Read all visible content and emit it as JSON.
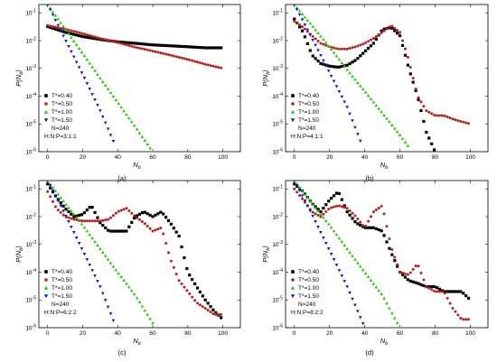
{
  "chart_data": [
    {
      "type": "scatter",
      "panel_label": "(a)",
      "xlabel": "N",
      "xlabel_sub": "b",
      "ylabel": "P(N",
      "ylabel_sub": "b",
      "ylabel_close": ")",
      "xlim": [
        -5,
        110
      ],
      "ylim_log10": [
        -6,
        -0.7
      ],
      "x_ticks": [
        0,
        20,
        40,
        60,
        80,
        100
      ],
      "y_tick_labels": [
        {
          "base": "10",
          "exp": "-1"
        },
        {
          "base": "10",
          "exp": "-2"
        },
        {
          "base": "10",
          "exp": "-3"
        },
        {
          "base": "10",
          "exp": "-4"
        },
        {
          "base": "10",
          "exp": "-5"
        },
        {
          "base": "10",
          "exp": "-6"
        }
      ],
      "legend": {
        "placement": "lower-left",
        "notes": [
          "N=240",
          "H:N:P=3:1:1"
        ]
      },
      "series": [
        {
          "name": "T*=0.40",
          "marker": "square",
          "color": "#000000",
          "x": [
            0,
            10,
            20,
            30,
            40,
            50,
            60,
            70,
            80,
            90,
            100
          ],
          "y": [
            0.032,
            0.02,
            0.014,
            0.011,
            0.009,
            0.008,
            0.007,
            0.0065,
            0.006,
            0.0055,
            0.0055
          ]
        },
        {
          "name": "T*=0.50",
          "marker": "circle",
          "color": "#b22222",
          "x": [
            0,
            10,
            20,
            30,
            40,
            50,
            60,
            70,
            80,
            90,
            100
          ],
          "y": [
            0.035,
            0.026,
            0.018,
            0.012,
            0.0085,
            0.0058,
            0.0042,
            0.003,
            0.0021,
            0.0014,
            0.001
          ]
        },
        {
          "name": "T*=1.00",
          "marker": "triangle-up",
          "color": "#22cc00",
          "x": [
            0,
            10,
            20,
            30,
            40,
            50,
            60
          ],
          "y": [
            0.2,
            0.027,
            0.0035,
            0.00045,
            6e-05,
            8e-06,
            1e-06
          ]
        },
        {
          "name": "T*=1.50",
          "marker": "triangle-down",
          "color": "#1010cc",
          "x": [
            0,
            10,
            20,
            30,
            38
          ],
          "y": [
            0.2,
            0.011,
            0.0006,
            3e-05,
            2e-06
          ]
        }
      ]
    },
    {
      "type": "scatter",
      "panel_label": "(b)",
      "xlabel": "N",
      "xlabel_sub": "b",
      "ylabel": "P(N",
      "ylabel_sub": "b",
      "ylabel_close": ")",
      "xlim": [
        -5,
        110
      ],
      "ylim_log10": [
        -6,
        -0.7
      ],
      "x_ticks": [
        0,
        20,
        40,
        60,
        80,
        100
      ],
      "y_tick_labels": [
        {
          "base": "10",
          "exp": "-1"
        },
        {
          "base": "10",
          "exp": "-2"
        },
        {
          "base": "10",
          "exp": "-3"
        },
        {
          "base": "10",
          "exp": "-4"
        },
        {
          "base": "10",
          "exp": "-5"
        },
        {
          "base": "10",
          "exp": "-6"
        }
      ],
      "legend": {
        "placement": "lower-left",
        "notes": [
          "N=240",
          "H:N:P=4:1:1"
        ]
      },
      "series": [
        {
          "name": "T*=0.40",
          "marker": "square",
          "color": "#000000",
          "x": [
            0,
            5,
            10,
            15,
            20,
            25,
            30,
            35,
            40,
            45,
            50,
            55,
            60,
            65,
            70,
            75,
            80
          ],
          "y": [
            0.06,
            0.02,
            0.003,
            0.0015,
            0.0012,
            0.0011,
            0.0013,
            0.002,
            0.004,
            0.008,
            0.025,
            0.03,
            0.015,
            0.001,
            0.0001,
            5e-06,
            1e-06
          ]
        },
        {
          "name": "T*=0.50",
          "marker": "circle",
          "color": "#b22222",
          "x": [
            0,
            5,
            10,
            15,
            20,
            25,
            30,
            35,
            40,
            45,
            50,
            55,
            60,
            65,
            70,
            75,
            80,
            85,
            90,
            95,
            100
          ],
          "y": [
            0.05,
            0.03,
            0.015,
            0.008,
            0.006,
            0.005,
            0.005,
            0.006,
            0.008,
            0.012,
            0.02,
            0.035,
            0.02,
            0.002,
            0.0001,
            3e-05,
            2e-05,
            2e-05,
            1.5e-05,
            1.2e-05,
            1e-05
          ]
        },
        {
          "name": "T*=1.00",
          "marker": "triangle-up",
          "color": "#22cc00",
          "x": [
            0,
            10,
            20,
            30,
            40,
            50,
            60,
            65
          ],
          "y": [
            0.2,
            0.035,
            0.006,
            0.0009,
            0.00015,
            2.5e-05,
            4e-06,
            1.5e-06
          ]
        },
        {
          "name": "T*=1.50",
          "marker": "triangle-down",
          "color": "#1010cc",
          "x": [
            0,
            10,
            20,
            30,
            38
          ],
          "y": [
            0.2,
            0.012,
            0.0007,
            4e-05,
            2e-06
          ]
        }
      ]
    },
    {
      "type": "scatter",
      "panel_label": "(c)",
      "xlabel": "N",
      "xlabel_sub": "b",
      "ylabel": "P(N",
      "ylabel_sub": "b",
      "ylabel_close": ")",
      "xlim": [
        -5,
        110
      ],
      "ylim_log10": [
        -6,
        -0.7
      ],
      "x_ticks": [
        0,
        20,
        40,
        60,
        80,
        100
      ],
      "y_tick_labels": [
        {
          "base": "10",
          "exp": "-1"
        },
        {
          "base": "10",
          "exp": "-2"
        },
        {
          "base": "10",
          "exp": "-3"
        },
        {
          "base": "10",
          "exp": "-4"
        },
        {
          "base": "10",
          "exp": "-5"
        },
        {
          "base": "10",
          "exp": "-6"
        }
      ],
      "legend": {
        "placement": "lower-left",
        "notes": [
          "N=240",
          "H:N:P=6:2:2"
        ]
      },
      "series": [
        {
          "name": "T*=0.40",
          "marker": "square",
          "color": "#000000",
          "x": [
            0,
            5,
            10,
            15,
            20,
            25,
            30,
            35,
            40,
            45,
            50,
            55,
            60,
            65,
            70,
            75,
            80,
            85,
            90,
            95,
            100
          ],
          "y": [
            0.15,
            0.05,
            0.02,
            0.01,
            0.012,
            0.025,
            0.006,
            0.003,
            0.003,
            0.003,
            0.01,
            0.015,
            0.01,
            0.015,
            0.006,
            0.002,
            0.0001,
            3e-05,
            1e-05,
            4e-06,
            2e-06
          ]
        },
        {
          "name": "T*=0.50",
          "marker": "circle",
          "color": "#b22222",
          "x": [
            0,
            5,
            10,
            15,
            20,
            25,
            30,
            35,
            40,
            45,
            50,
            55,
            60,
            65,
            70,
            75,
            80,
            85,
            90,
            95,
            100
          ],
          "y": [
            0.08,
            0.02,
            0.01,
            0.008,
            0.007,
            0.007,
            0.007,
            0.008,
            0.015,
            0.02,
            0.01,
            0.006,
            0.003,
            0.004,
            0.0003,
            5e-05,
            2e-05,
            8e-06,
            5e-06,
            3e-06,
            3e-06
          ]
        },
        {
          "name": "T*=1.00",
          "marker": "triangle-up",
          "color": "#22cc00",
          "x": [
            0,
            10,
            20,
            30,
            40,
            50,
            60
          ],
          "y": [
            0.2,
            0.03,
            0.005,
            0.0007,
            0.0001,
            1.5e-05,
            1.5e-06
          ]
        },
        {
          "name": "T*=1.50",
          "marker": "triangle-down",
          "color": "#1010cc",
          "x": [
            0,
            10,
            20,
            30,
            38
          ],
          "y": [
            0.2,
            0.012,
            0.0006,
            3e-05,
            1.5e-06
          ]
        }
      ]
    },
    {
      "type": "scatter",
      "panel_label": "(d)",
      "xlabel": "N",
      "xlabel_sub": "b",
      "ylabel": "P(N",
      "ylabel_sub": "b",
      "ylabel_close": ")",
      "xlim": [
        -5,
        110
      ],
      "ylim_log10": [
        -6,
        -0.7
      ],
      "x_ticks": [
        0,
        20,
        40,
        60,
        80,
        100
      ],
      "y_tick_labels": [
        {
          "base": "10",
          "exp": "-1"
        },
        {
          "base": "10",
          "exp": "-2"
        },
        {
          "base": "10",
          "exp": "-3"
        },
        {
          "base": "10",
          "exp": "-4"
        },
        {
          "base": "10",
          "exp": "-5"
        },
        {
          "base": "10",
          "exp": "-6"
        }
      ],
      "legend": {
        "placement": "lower-left",
        "notes": [
          "N=240",
          "H:N:P=8:2:2"
        ]
      },
      "series": [
        {
          "name": "T*=0.40",
          "marker": "square",
          "color": "#000000",
          "x": [
            0,
            5,
            10,
            15,
            20,
            25,
            30,
            35,
            40,
            45,
            50,
            55,
            60,
            65,
            70,
            75,
            80,
            85,
            90,
            95,
            100
          ],
          "y": [
            0.15,
            0.08,
            0.03,
            0.015,
            0.04,
            0.08,
            0.015,
            0.006,
            0.004,
            0.004,
            0.003,
            0.0005,
            0.0001,
            5e-05,
            4e-05,
            3e-05,
            3e-05,
            2e-05,
            2e-05,
            2e-05,
            1e-05
          ]
        },
        {
          "name": "T*=0.50",
          "marker": "circle",
          "color": "#b22222",
          "x": [
            0,
            5,
            10,
            15,
            20,
            25,
            30,
            35,
            40,
            45,
            50,
            55,
            60,
            65,
            70,
            75,
            80,
            85,
            90,
            95,
            100
          ],
          "y": [
            0.1,
            0.04,
            0.015,
            0.01,
            0.02,
            0.025,
            0.02,
            0.01,
            0.004,
            0.015,
            0.025,
            0.0008,
            0.0001,
            8e-05,
            0.0002,
            3e-05,
            2e-05,
            2e-05,
            5e-06,
            2e-06,
            2e-06
          ]
        },
        {
          "name": "T*=1.00",
          "marker": "triangle-up",
          "color": "#22cc00",
          "x": [
            0,
            10,
            20,
            30,
            40,
            50,
            60
          ],
          "y": [
            0.2,
            0.03,
            0.005,
            0.0007,
            0.0001,
            1.5e-05,
            1e-06
          ]
        },
        {
          "name": "T*=1.50",
          "marker": "triangle-down",
          "color": "#1010cc",
          "x": [
            0,
            10,
            20,
            30,
            40
          ],
          "y": [
            0.2,
            0.012,
            0.0006,
            3e-05,
            1e-06
          ]
        }
      ]
    }
  ]
}
